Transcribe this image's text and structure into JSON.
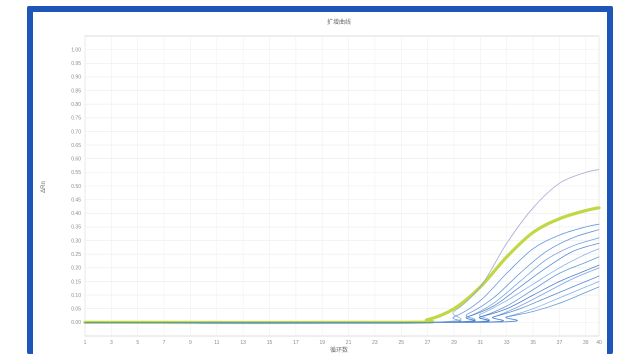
{
  "chart_data": {
    "type": "line",
    "title": "扩增曲线",
    "xlabel": "循环数",
    "ylabel": "ΔRn",
    "xlim": [
      1,
      40
    ],
    "ylim": [
      -0.05,
      1.05
    ],
    "x_ticks": [
      1,
      3,
      5,
      7,
      9,
      11,
      13,
      15,
      17,
      19,
      21,
      23,
      25,
      27,
      29,
      31,
      33,
      35,
      37,
      39,
      40
    ],
    "y_ticks": [
      "1.00",
      "0.95",
      "0.90",
      "0.85",
      "0.80",
      "0.75",
      "0.70",
      "0.65",
      "0.60",
      "0.55",
      "0.50",
      "0.45",
      "0.40",
      "0.35",
      "0.30",
      "0.25",
      "0.20",
      "0.15",
      "0.10",
      "0.05",
      "0.00"
    ],
    "grid": true,
    "series": [
      {
        "color": "#bcd63a",
        "width": 3.2,
        "values": [
          {
            "x": 1,
            "y": 0
          },
          {
            "x": 25,
            "y": 0
          },
          {
            "x": 27,
            "y": 0.01
          },
          {
            "x": 29,
            "y": 0.05
          },
          {
            "x": 31,
            "y": 0.13
          },
          {
            "x": 33,
            "y": 0.24
          },
          {
            "x": 35,
            "y": 0.33
          },
          {
            "x": 37,
            "y": 0.38
          },
          {
            "x": 39,
            "y": 0.41
          },
          {
            "x": 40,
            "y": 0.42
          }
        ]
      },
      {
        "color": "#9aa4cc",
        "width": 0.8,
        "values": [
          {
            "x": 1,
            "y": 0
          },
          {
            "x": 27,
            "y": 0
          },
          {
            "x": 29,
            "y": 0.04
          },
          {
            "x": 31,
            "y": 0.13
          },
          {
            "x": 33,
            "y": 0.29
          },
          {
            "x": 35,
            "y": 0.42
          },
          {
            "x": 37,
            "y": 0.51
          },
          {
            "x": 39,
            "y": 0.55
          },
          {
            "x": 40,
            "y": 0.56
          }
        ]
      },
      {
        "color": "#5a8fd6",
        "width": 0.8,
        "values": [
          {
            "x": 1,
            "y": 0
          },
          {
            "x": 27,
            "y": 0
          },
          {
            "x": 29,
            "y": 0.02
          },
          {
            "x": 31,
            "y": 0.08
          },
          {
            "x": 33,
            "y": 0.18
          },
          {
            "x": 35,
            "y": 0.27
          },
          {
            "x": 37,
            "y": 0.32
          },
          {
            "x": 39,
            "y": 0.35
          },
          {
            "x": 40,
            "y": 0.36
          }
        ]
      },
      {
        "color": "#5a8fd6",
        "width": 0.8,
        "values": [
          {
            "x": 1,
            "y": 0
          },
          {
            "x": 28,
            "y": 0
          },
          {
            "x": 30,
            "y": 0.03
          },
          {
            "x": 32,
            "y": 0.09
          },
          {
            "x": 34,
            "y": 0.18
          },
          {
            "x": 36,
            "y": 0.26
          },
          {
            "x": 38,
            "y": 0.31
          },
          {
            "x": 40,
            "y": 0.34
          }
        ]
      },
      {
        "color": "#6b9be0",
        "width": 0.8,
        "values": [
          {
            "x": 1,
            "y": 0
          },
          {
            "x": 28,
            "y": 0
          },
          {
            "x": 30,
            "y": 0.02
          },
          {
            "x": 32,
            "y": 0.07
          },
          {
            "x": 34,
            "y": 0.15
          },
          {
            "x": 36,
            "y": 0.23
          },
          {
            "x": 38,
            "y": 0.28
          },
          {
            "x": 40,
            "y": 0.31
          }
        ]
      },
      {
        "color": "#4a7fcc",
        "width": 0.8,
        "values": [
          {
            "x": 1,
            "y": 0
          },
          {
            "x": 28,
            "y": 0
          },
          {
            "x": 30,
            "y": 0.02
          },
          {
            "x": 32,
            "y": 0.06
          },
          {
            "x": 34,
            "y": 0.13
          },
          {
            "x": 36,
            "y": 0.2
          },
          {
            "x": 38,
            "y": 0.26
          },
          {
            "x": 40,
            "y": 0.29
          }
        ]
      },
      {
        "color": "#7aa8e6",
        "width": 0.8,
        "values": [
          {
            "x": 1,
            "y": 0
          },
          {
            "x": 29,
            "y": 0
          },
          {
            "x": 31,
            "y": 0.03
          },
          {
            "x": 33,
            "y": 0.08
          },
          {
            "x": 35,
            "y": 0.14
          },
          {
            "x": 37,
            "y": 0.2
          },
          {
            "x": 39,
            "y": 0.25
          },
          {
            "x": 40,
            "y": 0.27
          }
        ]
      },
      {
        "color": "#5a8fd6",
        "width": 0.8,
        "values": [
          {
            "x": 1,
            "y": 0
          },
          {
            "x": 29,
            "y": 0
          },
          {
            "x": 31,
            "y": 0.02
          },
          {
            "x": 33,
            "y": 0.06
          },
          {
            "x": 35,
            "y": 0.12
          },
          {
            "x": 37,
            "y": 0.18
          },
          {
            "x": 39,
            "y": 0.22
          },
          {
            "x": 40,
            "y": 0.24
          }
        ]
      },
      {
        "color": "#3f75c4",
        "width": 0.8,
        "values": [
          {
            "x": 1,
            "y": 0
          },
          {
            "x": 29,
            "y": 0
          },
          {
            "x": 31,
            "y": 0.02
          },
          {
            "x": 33,
            "y": 0.05
          },
          {
            "x": 35,
            "y": 0.1
          },
          {
            "x": 37,
            "y": 0.15
          },
          {
            "x": 39,
            "y": 0.19
          },
          {
            "x": 40,
            "y": 0.21
          }
        ]
      },
      {
        "color": "#6b9be0",
        "width": 0.8,
        "values": [
          {
            "x": 1,
            "y": 0
          },
          {
            "x": 30,
            "y": 0
          },
          {
            "x": 32,
            "y": 0.02
          },
          {
            "x": 34,
            "y": 0.06
          },
          {
            "x": 36,
            "y": 0.11
          },
          {
            "x": 38,
            "y": 0.16
          },
          {
            "x": 40,
            "y": 0.2
          }
        ]
      },
      {
        "color": "#4a7fcc",
        "width": 0.8,
        "values": [
          {
            "x": 1,
            "y": 0
          },
          {
            "x": 30,
            "y": 0
          },
          {
            "x": 32,
            "y": 0.02
          },
          {
            "x": 34,
            "y": 0.05
          },
          {
            "x": 36,
            "y": 0.09
          },
          {
            "x": 38,
            "y": 0.13
          },
          {
            "x": 40,
            "y": 0.17
          }
        ]
      },
      {
        "color": "#7aa8e6",
        "width": 0.8,
        "values": [
          {
            "x": 1,
            "y": 0
          },
          {
            "x": 31,
            "y": 0
          },
          {
            "x": 33,
            "y": 0.02
          },
          {
            "x": 35,
            "y": 0.05
          },
          {
            "x": 37,
            "y": 0.09
          },
          {
            "x": 39,
            "y": 0.13
          },
          {
            "x": 40,
            "y": 0.15
          }
        ]
      },
      {
        "color": "#5a8fd6",
        "width": 0.8,
        "values": [
          {
            "x": 1,
            "y": 0
          },
          {
            "x": 31,
            "y": 0
          },
          {
            "x": 33,
            "y": 0.02
          },
          {
            "x": 35,
            "y": 0.04
          },
          {
            "x": 37,
            "y": 0.07
          },
          {
            "x": 39,
            "y": 0.11
          },
          {
            "x": 40,
            "y": 0.13
          }
        ]
      }
    ]
  }
}
